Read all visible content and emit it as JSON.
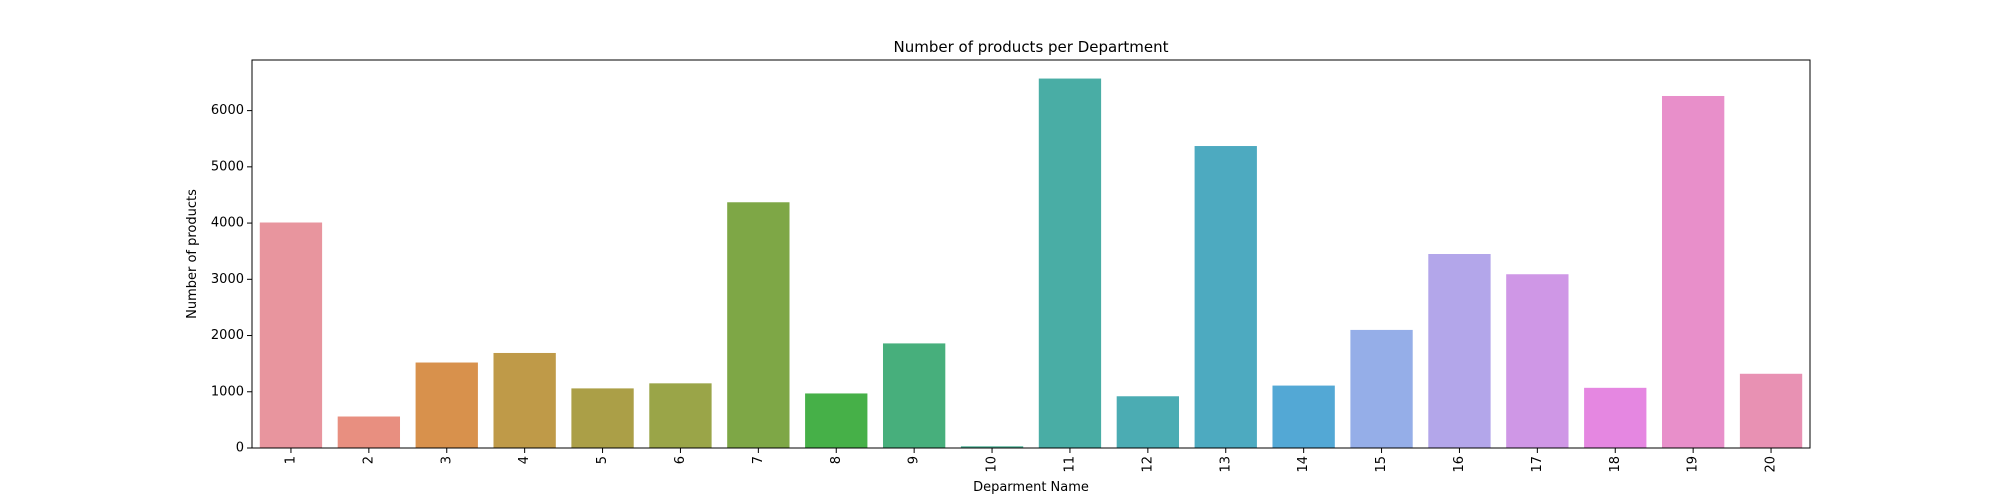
{
  "chart_data": {
    "type": "bar",
    "title": "Number of products per Department",
    "xlabel": "Deparment Name",
    "ylabel": "Number of products",
    "categories": [
      "1",
      "2",
      "3",
      "4",
      "5",
      "6",
      "7",
      "8",
      "9",
      "10",
      "11",
      "12",
      "13",
      "14",
      "15",
      "16",
      "17",
      "18",
      "19",
      "20"
    ],
    "values": [
      4010,
      560,
      1520,
      1690,
      1060,
      1150,
      4370,
      970,
      1860,
      30,
      6570,
      920,
      5370,
      1110,
      2100,
      3450,
      3090,
      1070,
      6260,
      1320
    ],
    "colors": [
      "#e8959e",
      "#e88f80",
      "#d8914c",
      "#bf9a48",
      "#ab9f47",
      "#9aa548",
      "#7ea746",
      "#46b048",
      "#47af7c",
      "#4aaf93",
      "#49ada5",
      "#4bacb3",
      "#4daac0",
      "#53a8d5",
      "#95aee8",
      "#b3a6ea",
      "#cf97e6",
      "#e587e1",
      "#e88fca",
      "#e891b3"
    ],
    "ylim": [
      0,
      6900
    ],
    "yticks": [
      0,
      1000,
      2000,
      3000,
      4000,
      5000,
      6000
    ],
    "grid": false
  }
}
